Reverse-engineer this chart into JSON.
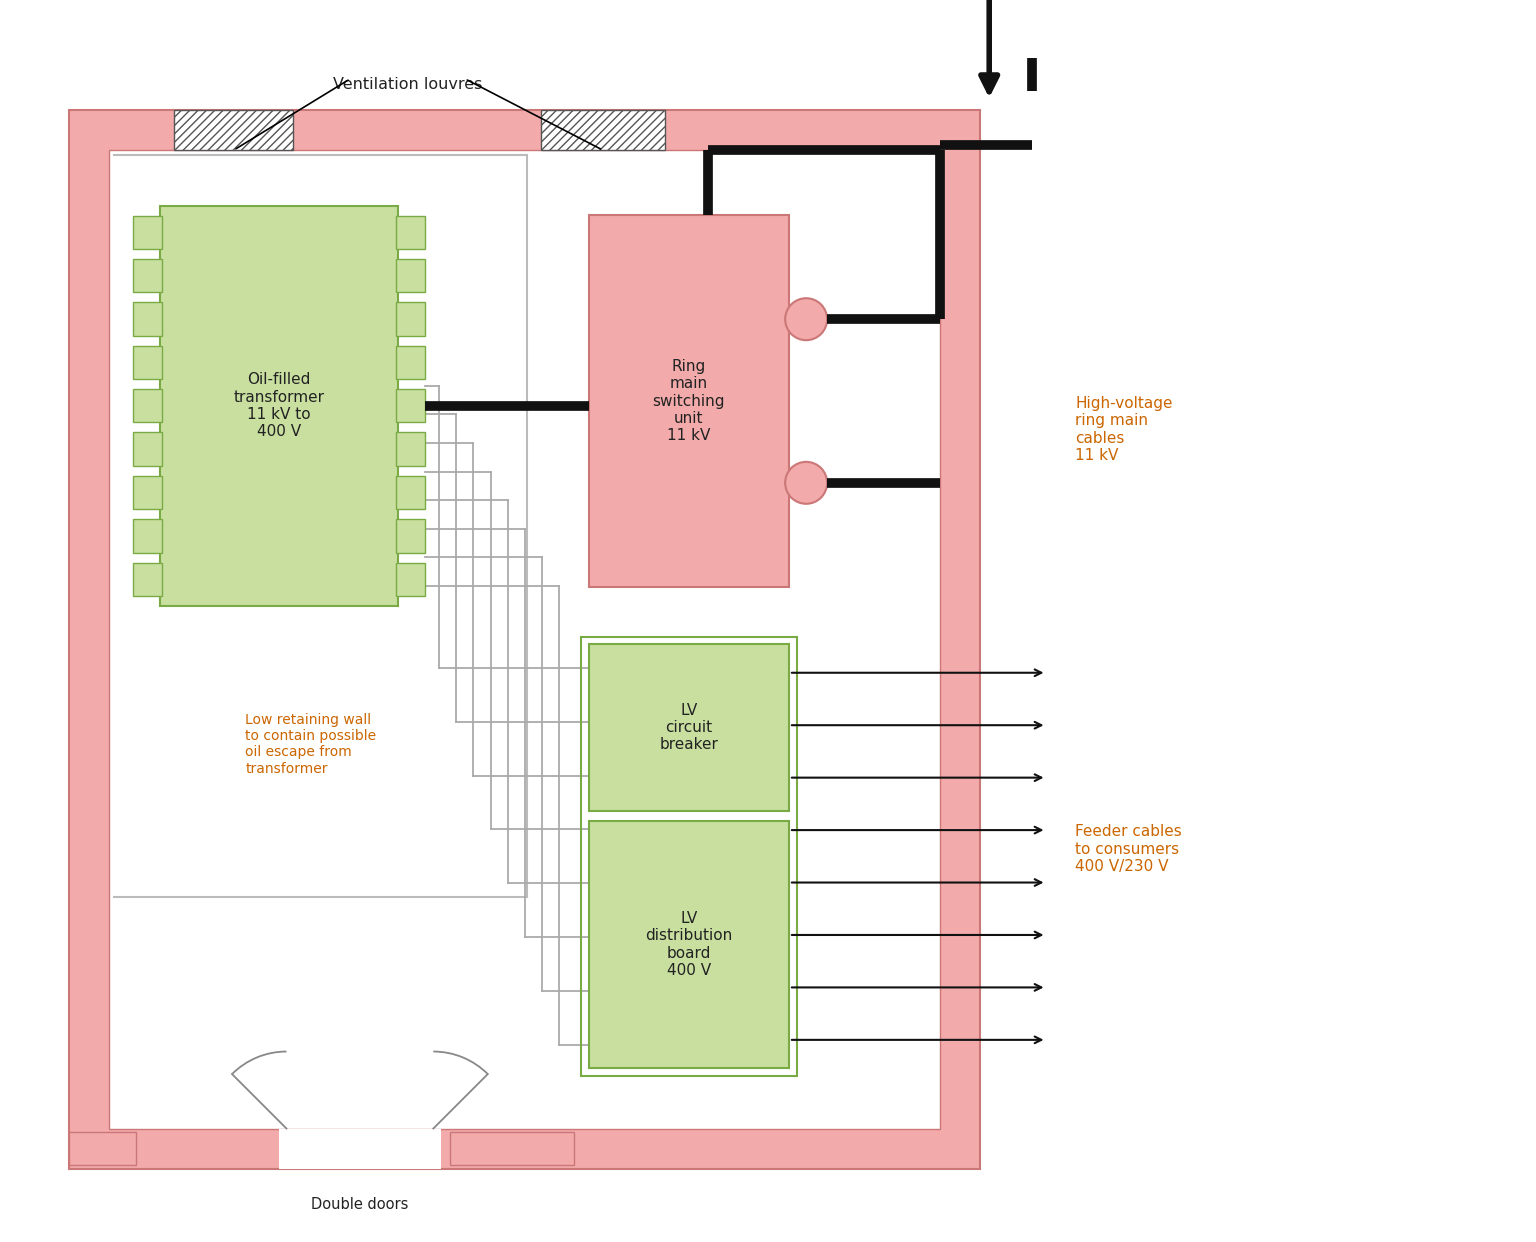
{
  "bg_color": "#ffffff",
  "wall_color": "#f2aaaa",
  "wall_edge": "#cc7777",
  "transformer_fill": "#c8dfa0",
  "transformer_edge": "#7aaa44",
  "ring_fill": "#f2aaaa",
  "ring_edge": "#cc7777",
  "lv_fill": "#c8dfa0",
  "lv_edge": "#7aaa44",
  "hv_line_color": "#111111",
  "lv_line_color": "#aaaaaa",
  "arrow_color": "#111111",
  "label_color": "#cc6600",
  "text_color": "#222222",
  "ventilation_label": "Ventilation louvres",
  "transformer_label": "Oil-filled\ntransformer\n11 kV to\n400 V",
  "ring_label": "Ring\nmain\nswitching\nunit\n11 kV",
  "lv_circuit_label": "LV\ncircuit\nbreaker",
  "lv_dist_label": "LV\ndistribution\nboard\n400 V",
  "low_wall_label": "Low retaining wall\nto contain possible\noil escape from\ntransformer",
  "double_doors_label": "Double doors",
  "hv_cable_label": "High-voltage\nring main\ncables\n11 kV",
  "feeder_label": "Feeder cables\nto consumers\n400 V/230 V"
}
